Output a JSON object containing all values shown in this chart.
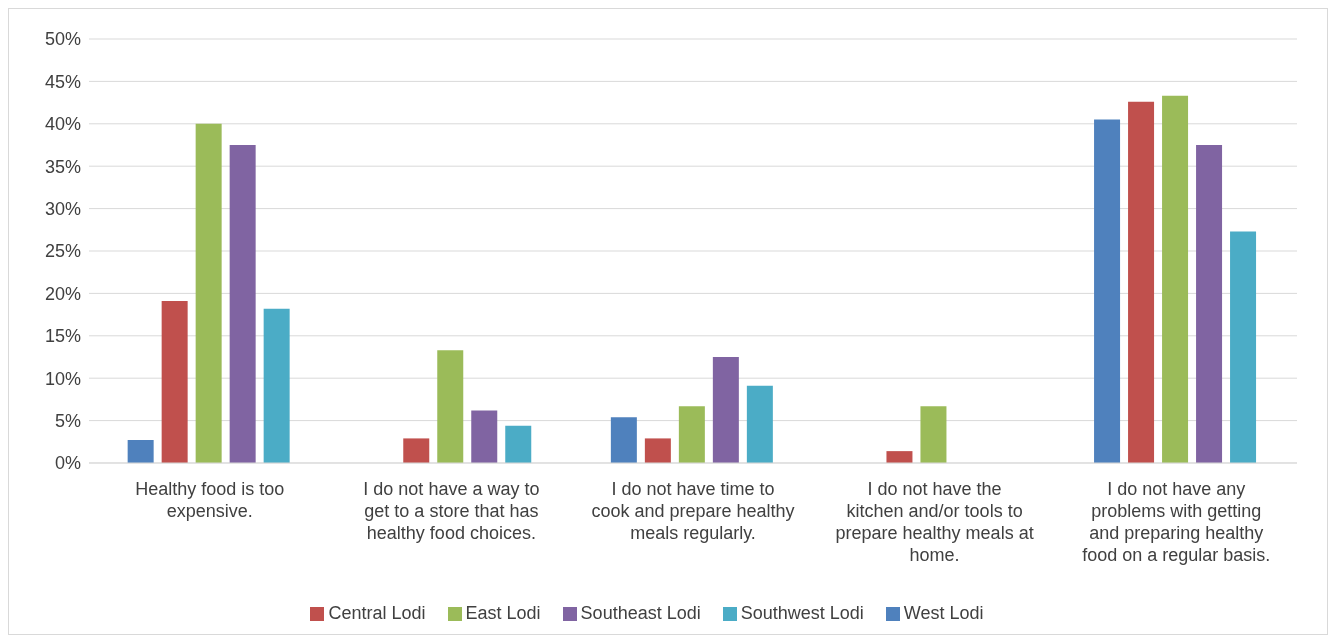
{
  "chart_data": {
    "type": "bar",
    "categories": [
      "Healthy food is too expensive.",
      "I do not have a way to get to a store that has healthy food choices.",
      "I do not have time to cook and prepare healthy meals regularly.",
      "I do not have the kitchen and/or tools to prepare healthy meals at home.",
      "I do not have any problems with getting and preparing healthy food on a regular basis."
    ],
    "series": [
      {
        "name": "West Lodi",
        "color": "#4f81bd",
        "values": [
          2.7,
          0,
          5.4,
          0,
          40.5
        ]
      },
      {
        "name": "Central Lodi",
        "color": "#c0504d",
        "values": [
          19.1,
          2.9,
          2.9,
          1.4,
          42.6
        ]
      },
      {
        "name": "East Lodi",
        "color": "#9bbb59",
        "values": [
          40,
          13.3,
          6.7,
          6.7,
          43.3
        ]
      },
      {
        "name": "Southeast Lodi",
        "color": "#8064a2",
        "values": [
          37.5,
          6.2,
          12.5,
          0,
          37.5
        ]
      },
      {
        "name": "Southwest Lodi",
        "color": "#4bacc6",
        "values": [
          18.2,
          4.4,
          9.1,
          0,
          27.3
        ]
      }
    ],
    "ylim": [
      0,
      50
    ],
    "yticks": [
      {
        "value": 0,
        "label": "0%"
      },
      {
        "value": 5,
        "label": "5%"
      },
      {
        "value": 10,
        "label": "10%"
      },
      {
        "value": 15,
        "label": "15%"
      },
      {
        "value": 20,
        "label": "20%"
      },
      {
        "value": 25,
        "label": "25%"
      },
      {
        "value": 30,
        "label": "30%"
      },
      {
        "value": 35,
        "label": "35%"
      },
      {
        "value": 40,
        "label": "40%"
      },
      {
        "value": 45,
        "label": "45%"
      },
      {
        "value": 50,
        "label": "50%"
      }
    ],
    "grid": "y",
    "legend": "bottom"
  }
}
